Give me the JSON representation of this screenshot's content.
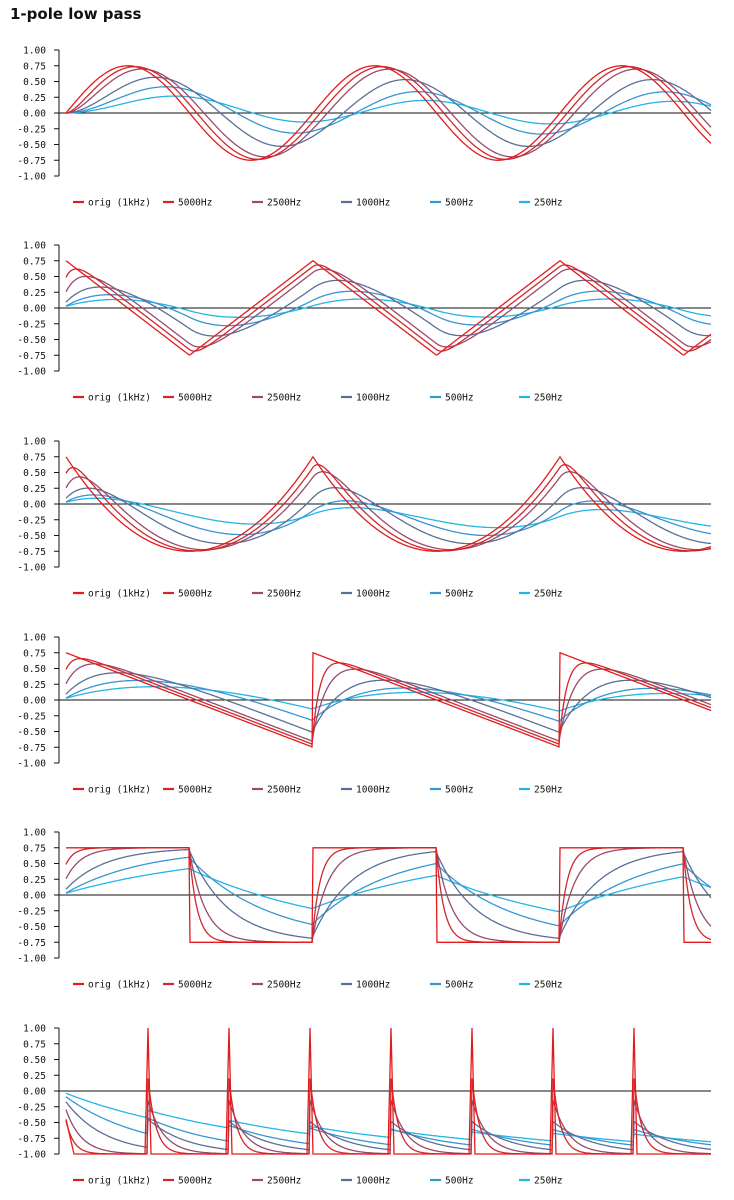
{
  "page": {
    "title": "1-pole low pass"
  },
  "colors": {
    "orig (1kHz)": "#e41a1c",
    "5000Hz": "#d1262c",
    "2500Hz": "#9a4a6c",
    "1000Hz": "#5a6f96",
    "500Hz": "#3796d2",
    "250Hz": "#23b5e6"
  },
  "chart_data": [
    {
      "type": "line",
      "waveform": "sine",
      "ylim": [
        -1,
        1
      ],
      "yticks": [
        "1.00",
        "0.75",
        "0.50",
        "0.25",
        "0.00",
        "-0.25",
        "-0.50",
        "-0.75",
        "-1.00"
      ],
      "series": [
        {
          "name": "orig (1kHz)",
          "cutoff_hz": null
        },
        {
          "name": "5000Hz",
          "cutoff_hz": 5000
        },
        {
          "name": "2500Hz",
          "cutoff_hz": 2500
        },
        {
          "name": "1000Hz",
          "cutoff_hz": 1000
        },
        {
          "name": "500Hz",
          "cutoff_hz": 500
        },
        {
          "name": "250Hz",
          "cutoff_hz": 250
        }
      ]
    },
    {
      "type": "line",
      "waveform": "triangle",
      "ylim": [
        -1,
        1
      ],
      "yticks": [
        "1.00",
        "0.75",
        "0.50",
        "0.25",
        "0.00",
        "-0.25",
        "-0.50",
        "-0.75",
        "-1.00"
      ],
      "series": [
        {
          "name": "orig (1kHz)",
          "cutoff_hz": null
        },
        {
          "name": "5000Hz",
          "cutoff_hz": 5000
        },
        {
          "name": "2500Hz",
          "cutoff_hz": 2500
        },
        {
          "name": "1000Hz",
          "cutoff_hz": 1000
        },
        {
          "name": "500Hz",
          "cutoff_hz": 500
        },
        {
          "name": "250Hz",
          "cutoff_hz": 250
        }
      ]
    },
    {
      "type": "line",
      "waveform": "parabolic",
      "ylim": [
        -1,
        1
      ],
      "yticks": [
        "1.00",
        "0.75",
        "0.50",
        "0.25",
        "0.00",
        "-0.25",
        "-0.50",
        "-0.75",
        "-1.00"
      ],
      "series": [
        {
          "name": "orig (1kHz)",
          "cutoff_hz": null
        },
        {
          "name": "5000Hz",
          "cutoff_hz": 5000
        },
        {
          "name": "2500Hz",
          "cutoff_hz": 2500
        },
        {
          "name": "1000Hz",
          "cutoff_hz": 1000
        },
        {
          "name": "500Hz",
          "cutoff_hz": 500
        },
        {
          "name": "250Hz",
          "cutoff_hz": 250
        }
      ]
    },
    {
      "type": "line",
      "waveform": "sawtooth",
      "ylim": [
        -1,
        1
      ],
      "yticks": [
        "1.00",
        "0.75",
        "0.50",
        "0.25",
        "0.00",
        "-0.25",
        "-0.50",
        "-0.75",
        "-1.00"
      ],
      "series": [
        {
          "name": "orig (1kHz)",
          "cutoff_hz": null
        },
        {
          "name": "5000Hz",
          "cutoff_hz": 5000
        },
        {
          "name": "2500Hz",
          "cutoff_hz": 2500
        },
        {
          "name": "1000Hz",
          "cutoff_hz": 1000
        },
        {
          "name": "500Hz",
          "cutoff_hz": 500
        },
        {
          "name": "250Hz",
          "cutoff_hz": 250
        }
      ]
    },
    {
      "type": "line",
      "waveform": "square",
      "ylim": [
        -1,
        1
      ],
      "yticks": [
        "1.00",
        "0.75",
        "0.50",
        "0.25",
        "0.00",
        "-0.25",
        "-0.50",
        "-0.75",
        "-1.00"
      ],
      "series": [
        {
          "name": "orig (1kHz)",
          "cutoff_hz": null
        },
        {
          "name": "5000Hz",
          "cutoff_hz": 5000
        },
        {
          "name": "2500Hz",
          "cutoff_hz": 2500
        },
        {
          "name": "1000Hz",
          "cutoff_hz": 1000
        },
        {
          "name": "500Hz",
          "cutoff_hz": 500
        },
        {
          "name": "250Hz",
          "cutoff_hz": 250
        }
      ]
    },
    {
      "type": "line",
      "waveform": "impulse",
      "ylim": [
        -1,
        1
      ],
      "yticks": [
        "1.00",
        "0.75",
        "0.50",
        "0.25",
        "0.00",
        "-0.25",
        "-0.50",
        "-0.75",
        "-1.00"
      ],
      "series": [
        {
          "name": "orig (1kHz)",
          "cutoff_hz": null
        },
        {
          "name": "5000Hz",
          "cutoff_hz": 5000
        },
        {
          "name": "2500Hz",
          "cutoff_hz": 2500
        },
        {
          "name": "1000Hz",
          "cutoff_hz": 1000
        },
        {
          "name": "500Hz",
          "cutoff_hz": 500
        },
        {
          "name": "250Hz",
          "cutoff_hz": 250
        }
      ]
    }
  ]
}
